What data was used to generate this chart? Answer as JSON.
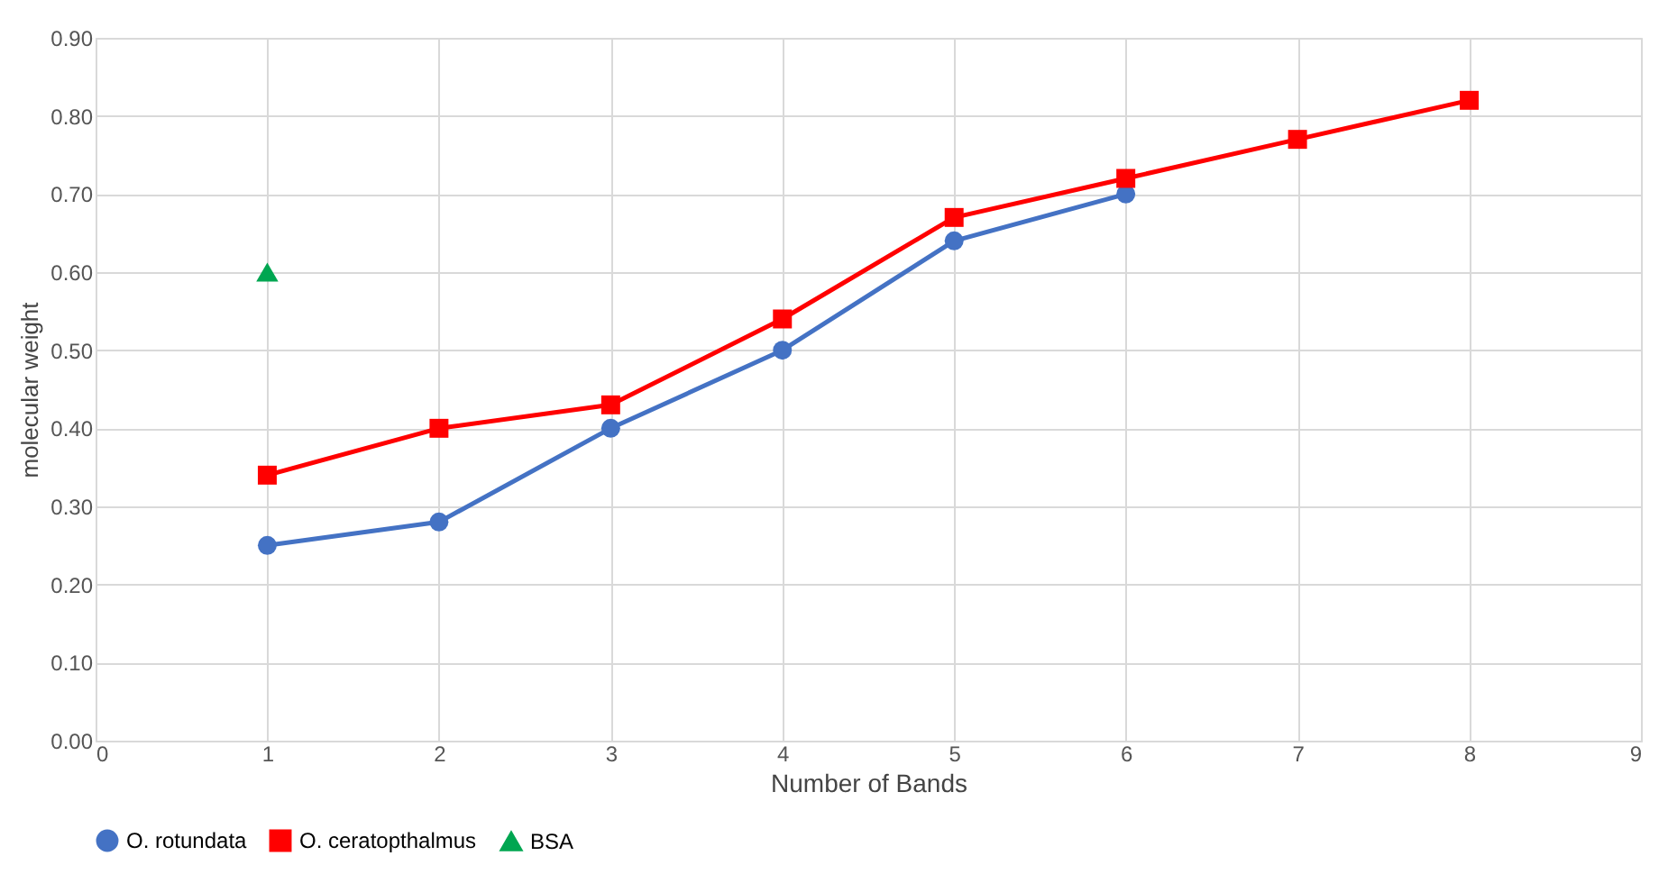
{
  "chart_data": {
    "type": "line",
    "xlabel": "Number of Bands",
    "ylabel": "molecular weight",
    "x": [
      1,
      2,
      3,
      4,
      5,
      6,
      7,
      8
    ],
    "series": [
      {
        "name": "O. rotundata",
        "color": "#4472c4",
        "marker": "circle",
        "values": [
          0.25,
          0.28,
          0.4,
          0.5,
          0.64,
          0.7,
          null,
          null
        ]
      },
      {
        "name": "O. ceratopthalmus",
        "color": "#ff0000",
        "marker": "square",
        "values": [
          0.34,
          0.4,
          0.43,
          0.54,
          0.67,
          0.72,
          0.77,
          0.82
        ]
      },
      {
        "name": "BSA",
        "type": "scatter",
        "color": "#00a651",
        "marker": "triangle",
        "values": [
          0.6,
          null,
          null,
          null,
          null,
          null,
          null,
          null
        ]
      }
    ],
    "xlim": [
      0,
      9
    ],
    "xticks": [
      0,
      1,
      2,
      3,
      4,
      5,
      6,
      7,
      8,
      9
    ],
    "ylim": [
      0,
      0.9
    ],
    "yticks": [
      {
        "value": 0,
        "label": "0.00"
      },
      {
        "value": 0.1,
        "label": "0.10"
      },
      {
        "value": 0.2,
        "label": "0.20"
      },
      {
        "value": 0.3,
        "label": "0.30"
      },
      {
        "value": 0.4,
        "label": "0.40"
      },
      {
        "value": 0.5,
        "label": "0.50"
      },
      {
        "value": 0.6,
        "label": "0.60"
      },
      {
        "value": 0.7,
        "label": "0.70"
      },
      {
        "value": 0.8,
        "label": "0.80"
      },
      {
        "value": 0.9,
        "label": "0.90"
      }
    ],
    "grid": true,
    "legend": "bottom"
  }
}
